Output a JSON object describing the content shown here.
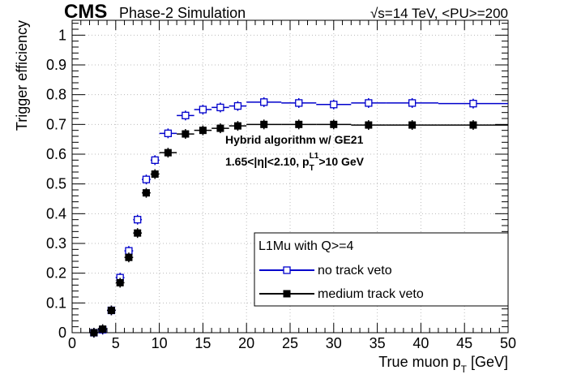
{
  "header": {
    "experiment": "CMS",
    "label": "Phase-2 Simulation",
    "energy": "√s=14 TeV, <PU>=200"
  },
  "annotation": {
    "algorithm": "Hybrid algorithm w/ GE21",
    "eta_cut": "1.65<|η|<2.10, p",
    "pt_sub": "T",
    "pt_sup": "L1",
    "pt_cut": ">10 GeV"
  },
  "legend": {
    "header": "L1Mu with Q>=4",
    "placement": "bottom-right"
  },
  "colors": {
    "no_track_veto": "#0000cc",
    "medium_track_veto": "#000000"
  },
  "chart_data": {
    "type": "scatter",
    "ylabel": "Trigger efficiency",
    "xlabel": "True muon p",
    "xlabel_sub": "T",
    "xlabel_unit": " [GeV]",
    "xlim": [
      0,
      50
    ],
    "ylim": [
      0,
      1.05
    ],
    "xticks": [
      "0",
      "5",
      "10",
      "15",
      "20",
      "25",
      "30",
      "35",
      "40",
      "45",
      "50"
    ],
    "yticks": [
      "0",
      "0.1",
      "0.2",
      "0.3",
      "0.4",
      "0.5",
      "0.6",
      "0.7",
      "0.8",
      "0.9",
      "1"
    ],
    "grid": true,
    "series": [
      {
        "name": "no track veto",
        "marker": "open-square",
        "points": [
          {
            "x": 2.5,
            "y": 0.0,
            "xlo": 2.0,
            "xhi": 3.0
          },
          {
            "x": 3.5,
            "y": 0.01,
            "xlo": 3.0,
            "xhi": 4.0
          },
          {
            "x": 4.5,
            "y": 0.075,
            "xlo": 4.0,
            "xhi": 5.0
          },
          {
            "x": 5.5,
            "y": 0.185,
            "xlo": 5.0,
            "xhi": 6.0
          },
          {
            "x": 6.5,
            "y": 0.275,
            "xlo": 6.0,
            "xhi": 7.0
          },
          {
            "x": 7.5,
            "y": 0.38,
            "xlo": 7.0,
            "xhi": 8.0
          },
          {
            "x": 8.5,
            "y": 0.515,
            "xlo": 8.0,
            "xhi": 9.0
          },
          {
            "x": 9.5,
            "y": 0.58,
            "xlo": 9.0,
            "xhi": 10.0
          },
          {
            "x": 11.0,
            "y": 0.67,
            "xlo": 10.0,
            "xhi": 12.0
          },
          {
            "x": 13.0,
            "y": 0.73,
            "xlo": 12.0,
            "xhi": 14.0
          },
          {
            "x": 15.0,
            "y": 0.75,
            "xlo": 14.0,
            "xhi": 16.0
          },
          {
            "x": 17.0,
            "y": 0.757,
            "xlo": 16.0,
            "xhi": 18.0
          },
          {
            "x": 19.0,
            "y": 0.762,
            "xlo": 18.0,
            "xhi": 20.0
          },
          {
            "x": 22.0,
            "y": 0.775,
            "xlo": 20.0,
            "xhi": 24.0
          },
          {
            "x": 26.0,
            "y": 0.772,
            "xlo": 24.0,
            "xhi": 28.0
          },
          {
            "x": 30.0,
            "y": 0.767,
            "xlo": 28.0,
            "xhi": 32.0
          },
          {
            "x": 34.0,
            "y": 0.772,
            "xlo": 32.0,
            "xhi": 36.0
          },
          {
            "x": 39.0,
            "y": 0.772,
            "xlo": 36.0,
            "xhi": 42.0
          },
          {
            "x": 46.0,
            "y": 0.77,
            "xlo": 42.0,
            "xhi": 50.0
          }
        ]
      },
      {
        "name": "medium track veto",
        "marker": "filled-square",
        "points": [
          {
            "x": 2.5,
            "y": 0.0,
            "xlo": 2.0,
            "xhi": 3.0
          },
          {
            "x": 3.5,
            "y": 0.012,
            "xlo": 3.0,
            "xhi": 4.0
          },
          {
            "x": 4.5,
            "y": 0.075,
            "xlo": 4.0,
            "xhi": 5.0
          },
          {
            "x": 5.5,
            "y": 0.168,
            "xlo": 5.0,
            "xhi": 6.0
          },
          {
            "x": 6.5,
            "y": 0.253,
            "xlo": 6.0,
            "xhi": 7.0
          },
          {
            "x": 7.5,
            "y": 0.335,
            "xlo": 7.0,
            "xhi": 8.0
          },
          {
            "x": 8.5,
            "y": 0.47,
            "xlo": 8.0,
            "xhi": 9.0
          },
          {
            "x": 9.5,
            "y": 0.533,
            "xlo": 9.0,
            "xhi": 10.0
          },
          {
            "x": 11.0,
            "y": 0.605,
            "xlo": 10.0,
            "xhi": 12.0
          },
          {
            "x": 13.0,
            "y": 0.668,
            "xlo": 12.0,
            "xhi": 14.0
          },
          {
            "x": 15.0,
            "y": 0.68,
            "xlo": 14.0,
            "xhi": 16.0
          },
          {
            "x": 17.0,
            "y": 0.687,
            "xlo": 16.0,
            "xhi": 18.0
          },
          {
            "x": 19.0,
            "y": 0.695,
            "xlo": 18.0,
            "xhi": 20.0
          },
          {
            "x": 22.0,
            "y": 0.7,
            "xlo": 20.0,
            "xhi": 24.0
          },
          {
            "x": 26.0,
            "y": 0.7,
            "xlo": 24.0,
            "xhi": 28.0
          },
          {
            "x": 30.0,
            "y": 0.7,
            "xlo": 28.0,
            "xhi": 32.0
          },
          {
            "x": 34.0,
            "y": 0.698,
            "xlo": 32.0,
            "xhi": 36.0
          },
          {
            "x": 39.0,
            "y": 0.698,
            "xlo": 36.0,
            "xhi": 42.0
          },
          {
            "x": 46.0,
            "y": 0.698,
            "xlo": 42.0,
            "xhi": 50.0
          }
        ]
      }
    ]
  }
}
